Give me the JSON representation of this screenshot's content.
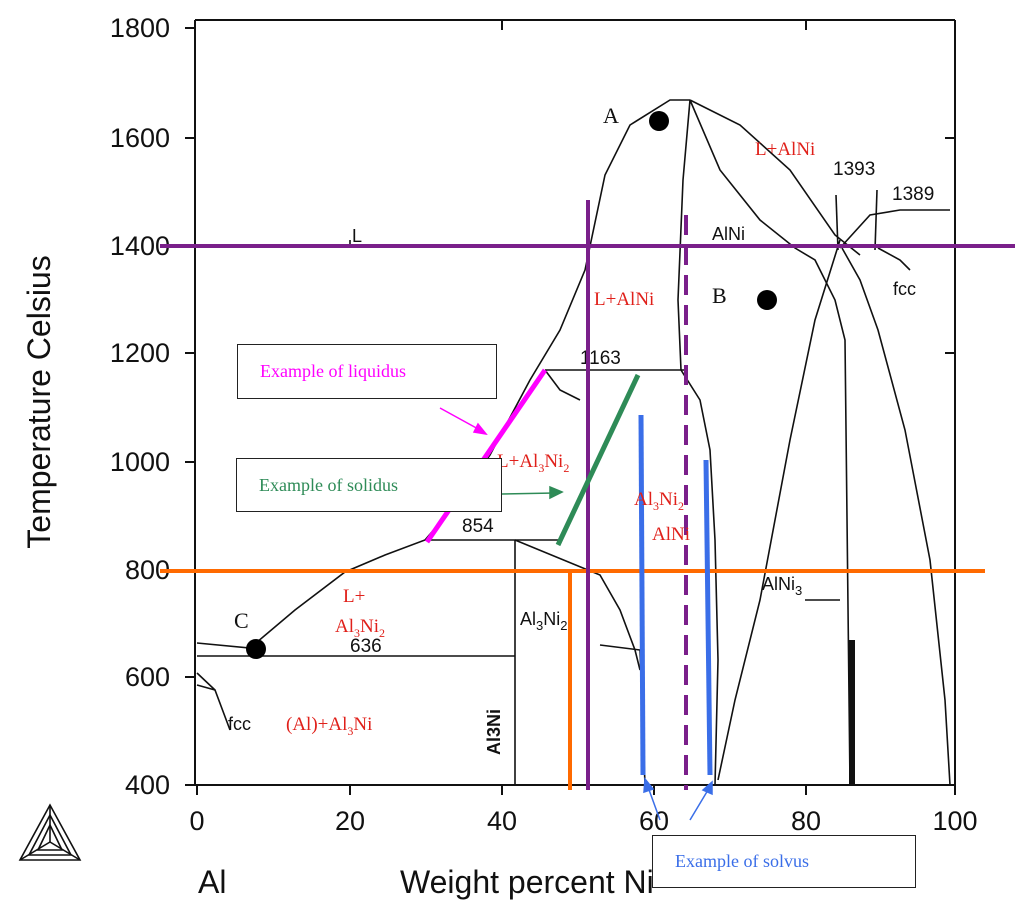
{
  "axes": {
    "ylabel": "Temperature Celsius",
    "xlabel": "Weight percent Ni",
    "y_ticks": [
      "1800",
      "1600",
      "1400",
      "1200",
      "1000",
      "800",
      "600",
      "400"
    ],
    "x_ticks": [
      "0",
      "20",
      "40",
      "60",
      "80",
      "100"
    ],
    "left_element": "Al"
  },
  "temperatures": {
    "t1163": "1163",
    "t854": "854",
    "t636": "636",
    "t1393": "1393",
    "t1389": "1389"
  },
  "phases": {
    "L": "L",
    "AlNi": "AlNi",
    "fcc_right": "fcc",
    "fcc_left": "fcc",
    "Al3Ni2_main": "Al",
    "Al3Ni2_sub3": "3",
    "Al3Ni2_ni": "Ni",
    "Al3Ni2_sub2": "2",
    "Al3Ni_vertical": "Al3Ni",
    "AlNi3_main": "AlNi",
    "AlNi3_sub": "3"
  },
  "red_labels": {
    "l_alni_top": "L+AlNi",
    "l_alni_mid": "L+AlNi",
    "l_al3ni2_a": "L+Al",
    "l_al3ni2_b": "3",
    "l_al3ni2_c": "Ni",
    "l_al3ni2_d": "2",
    "al3ni2_alni_a": "Al",
    "al3ni2_alni_b": "3",
    "al3ni2_alni_c": "Ni",
    "al3ni2_alni_d": "2",
    "al3ni2_alni_e": "AlNi",
    "lplus_a": "L+",
    "lplus_b": "Al",
    "lplus_c": "3",
    "lplus_d": "Ni",
    "lplus_e": "2",
    "al_al3ni_a": "(Al)+Al",
    "al_al3ni_b": "3",
    "al_al3ni_c": "Ni"
  },
  "points": {
    "A": "A",
    "B": "B",
    "C": "C"
  },
  "callouts": {
    "liquidus": "Example of liquidus",
    "solidus": "Example of solidus",
    "solvus": "Example of solvus"
  },
  "colors": {
    "liquidus": "#ff00ff",
    "solidus": "#2e8b57",
    "solvus": "#3a6ee8",
    "purple": "#7a1f8a",
    "orange": "#ff6a00",
    "red_text": "#e0201a"
  }
}
